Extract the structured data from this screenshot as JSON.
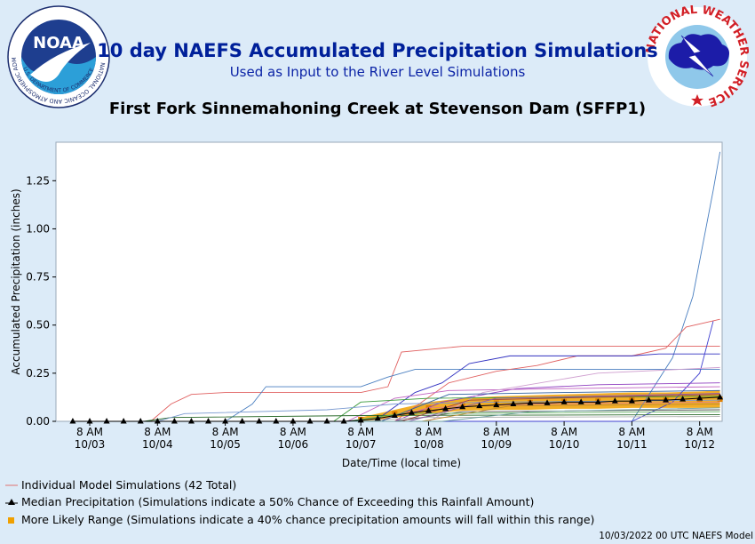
{
  "header": {
    "title": "10 day NAEFS Accumulated Precipitation Simulations",
    "subtitle": "Used as Input to the River Level Simulations",
    "site": "First Fork Sinnemahoning Creek at Stevenson Dam (SFFP1)"
  },
  "logos": {
    "noaa_ring_text": "NATIONAL OCEANIC AND ATMOSPHERIC ADMINISTRATION",
    "noaa_bottom_text": "U.S. DEPARTMENT OF COMMERCE",
    "noaa_center": "NOAA",
    "nws_ring_text": "NATIONAL WEATHER SERVICE"
  },
  "legend": {
    "individual": "Individual Model Simulations (42 Total)",
    "median": "Median Precipitation (Simulations indicate a 50% Chance of Exceeding this Rainfall Amount)",
    "range": "More Likely Range (Simulations indicate a 40% chance precipitation amounts will fall within this range)"
  },
  "footer": "10/03/2022 00 UTC NAEFS Model",
  "colors": {
    "individual": "#e07070",
    "median": "#000000",
    "range": "#f0a000",
    "title": "#00209a"
  },
  "chart_data": {
    "type": "line",
    "xlabel": "Date/Time (local time)",
    "ylabel": "Accumulated Precipitation (inches)",
    "xlim": [
      0,
      9.5
    ],
    "ylim": [
      0,
      1.45
    ],
    "grid": false,
    "y_ticks": [
      {
        "value": 0,
        "label": "0.00"
      },
      {
        "value": 0.25,
        "label": "0.25"
      },
      {
        "value": 0.5,
        "label": "0.50"
      },
      {
        "value": 0.75,
        "label": "0.75"
      },
      {
        "value": 1.0,
        "label": "1.00"
      },
      {
        "value": 1.25,
        "label": "1.25"
      }
    ],
    "x_ticks": [
      {
        "value": 0,
        "label1": "8 AM",
        "label2": "10/03"
      },
      {
        "value": 1,
        "label1": "8 AM",
        "label2": "10/04"
      },
      {
        "value": 2,
        "label1": "8 AM",
        "label2": "10/05"
      },
      {
        "value": 3,
        "label1": "8 AM",
        "label2": "10/06"
      },
      {
        "value": 4,
        "label1": "8 AM",
        "label2": "10/07"
      },
      {
        "value": 5,
        "label1": "8 AM",
        "label2": "10/08"
      },
      {
        "value": 6,
        "label1": "8 AM",
        "label2": "10/09"
      },
      {
        "value": 7,
        "label1": "8 AM",
        "label2": "10/10"
      },
      {
        "value": 8,
        "label1": "8 AM",
        "label2": "10/11"
      },
      {
        "value": 9,
        "label1": "8 AM",
        "label2": "10/12"
      }
    ],
    "range": {
      "x": [
        4.0,
        4.5,
        5.0,
        5.5,
        6.0,
        6.5,
        7.0,
        7.5,
        8.0,
        8.5,
        9.0,
        9.3
      ],
      "low": [
        0.0,
        0.02,
        0.04,
        0.055,
        0.06,
        0.06,
        0.065,
        0.065,
        0.07,
        0.07,
        0.07,
        0.07
      ],
      "high": [
        0.02,
        0.06,
        0.1,
        0.12,
        0.13,
        0.135,
        0.14,
        0.145,
        0.15,
        0.15,
        0.155,
        0.16
      ]
    },
    "median": {
      "x": [
        -0.25,
        0,
        0.25,
        0.5,
        0.75,
        1,
        1.25,
        1.5,
        1.75,
        2,
        2.25,
        2.5,
        2.75,
        3,
        3.25,
        3.5,
        3.75,
        4,
        4.25,
        4.5,
        4.75,
        5,
        5.25,
        5.5,
        5.75,
        6,
        6.25,
        6.5,
        6.75,
        7,
        7.25,
        7.5,
        7.75,
        8,
        8.25,
        8.5,
        8.75,
        9,
        9.3
      ],
      "y": [
        0,
        0,
        0,
        0,
        0,
        0,
        0,
        0,
        0,
        0,
        0,
        0,
        0,
        0,
        0,
        0,
        0,
        0.005,
        0.015,
        0.03,
        0.045,
        0.055,
        0.065,
        0.075,
        0.08,
        0.085,
        0.09,
        0.095,
        0.095,
        0.1,
        0.1,
        0.1,
        0.105,
        0.105,
        0.11,
        0.11,
        0.115,
        0.12,
        0.125
      ]
    },
    "series": [
      {
        "color": "#e06060",
        "points": [
          [
            -0.25,
            0
          ],
          [
            0.9,
            0
          ],
          [
            1.2,
            0.09
          ],
          [
            1.5,
            0.14
          ],
          [
            2,
            0.15
          ],
          [
            4,
            0.15
          ],
          [
            4.4,
            0.18
          ],
          [
            4.6,
            0.36
          ],
          [
            5.5,
            0.39
          ],
          [
            9.3,
            0.39
          ]
        ]
      },
      {
        "color": "#4a7fc0",
        "points": [
          [
            -0.25,
            0
          ],
          [
            2,
            0
          ],
          [
            2.4,
            0.09
          ],
          [
            2.6,
            0.18
          ],
          [
            4,
            0.18
          ],
          [
            4.4,
            0.23
          ],
          [
            4.8,
            0.27
          ],
          [
            9.3,
            0.27
          ]
        ]
      },
      {
        "color": "#4a7fc0",
        "points": [
          [
            -0.25,
            0
          ],
          [
            8,
            0
          ],
          [
            8.6,
            0.33
          ],
          [
            8.9,
            0.65
          ],
          [
            9.2,
            1.2
          ],
          [
            9.3,
            1.4
          ]
        ]
      },
      {
        "color": "#e06060",
        "points": [
          [
            -0.25,
            0
          ],
          [
            4.5,
            0
          ],
          [
            5.3,
            0.2
          ],
          [
            6,
            0.26
          ],
          [
            6.6,
            0.29
          ],
          [
            7.2,
            0.34
          ],
          [
            8,
            0.34
          ],
          [
            8.5,
            0.38
          ],
          [
            8.8,
            0.49
          ],
          [
            9.3,
            0.53
          ]
        ]
      },
      {
        "color": "#3030c0",
        "points": [
          [
            -0.25,
            0
          ],
          [
            4.2,
            0
          ],
          [
            4.8,
            0.15
          ],
          [
            5.2,
            0.2
          ],
          [
            5.6,
            0.3
          ],
          [
            6.2,
            0.34
          ],
          [
            8,
            0.34
          ],
          [
            8.4,
            0.35
          ],
          [
            9.3,
            0.35
          ]
        ]
      },
      {
        "color": "#4040d0",
        "points": [
          [
            -0.25,
            0
          ],
          [
            8,
            0
          ],
          [
            8.6,
            0.1
          ],
          [
            9,
            0.25
          ],
          [
            9.2,
            0.52
          ]
        ]
      },
      {
        "color": "#9040c0",
        "points": [
          [
            -0.25,
            0
          ],
          [
            4.5,
            0
          ],
          [
            5.2,
            0.1
          ],
          [
            6.3,
            0.17
          ],
          [
            7.5,
            0.19
          ],
          [
            9.3,
            0.2
          ]
        ]
      },
      {
        "color": "#c060c0",
        "points": [
          [
            -0.25,
            0
          ],
          [
            3.8,
            0
          ],
          [
            4.5,
            0.12
          ],
          [
            5.3,
            0.16
          ],
          [
            7,
            0.17
          ],
          [
            9.3,
            0.18
          ]
        ]
      },
      {
        "color": "#d0a0d0",
        "points": [
          [
            -0.25,
            0
          ],
          [
            5,
            0
          ],
          [
            5.8,
            0.15
          ],
          [
            7.5,
            0.25
          ],
          [
            9.3,
            0.28
          ]
        ]
      },
      {
        "color": "#3a9a3a",
        "points": [
          [
            -0.25,
            0
          ],
          [
            3.6,
            0
          ],
          [
            4,
            0.1
          ],
          [
            5,
            0.12
          ],
          [
            9.3,
            0.13
          ]
        ]
      },
      {
        "color": "#2a6a2a",
        "points": [
          [
            -0.25,
            0
          ],
          [
            0.8,
            0
          ],
          [
            1.2,
            0.02
          ],
          [
            4,
            0.03
          ],
          [
            9.3,
            0.035
          ]
        ]
      },
      {
        "color": "#7a9ad0",
        "points": [
          [
            -0.25,
            0
          ],
          [
            1.0,
            0
          ],
          [
            1.4,
            0.04
          ],
          [
            3.5,
            0.06
          ],
          [
            4.5,
            0.09
          ],
          [
            6,
            0.1
          ],
          [
            9.3,
            0.11
          ]
        ]
      },
      {
        "color": "#e08080",
        "points": [
          [
            -0.25,
            0
          ],
          [
            4.2,
            0
          ],
          [
            5,
            0.07
          ],
          [
            6.5,
            0.09
          ],
          [
            9.3,
            0.1
          ]
        ]
      },
      {
        "color": "#555555",
        "points": [
          [
            -0.25,
            0
          ],
          [
            4.5,
            0
          ],
          [
            5.5,
            0.05
          ],
          [
            9.3,
            0.06
          ]
        ]
      },
      {
        "color": "#60b060",
        "points": [
          [
            -0.25,
            0
          ],
          [
            3.8,
            0
          ],
          [
            4.6,
            0.04
          ],
          [
            9.3,
            0.05
          ]
        ]
      },
      {
        "color": "#b0b0b0",
        "points": [
          [
            -0.25,
            0
          ],
          [
            4,
            0
          ],
          [
            4.8,
            0.02
          ],
          [
            9.3,
            0.025
          ]
        ]
      },
      {
        "color": "#3060a0",
        "points": [
          [
            -0.25,
            0
          ],
          [
            4.3,
            0
          ],
          [
            5.3,
            0.14
          ],
          [
            7,
            0.15
          ],
          [
            9.3,
            0.16
          ]
        ]
      },
      {
        "color": "#a04040",
        "points": [
          [
            -0.25,
            0
          ],
          [
            4.6,
            0
          ],
          [
            5.6,
            0.11
          ],
          [
            9.3,
            0.14
          ]
        ]
      },
      {
        "color": "#8a5ab0",
        "points": [
          [
            -0.25,
            0
          ],
          [
            4.7,
            0
          ],
          [
            6,
            0.12
          ],
          [
            9.3,
            0.145
          ]
        ]
      },
      {
        "color": "#c08a30",
        "points": [
          [
            -0.25,
            0
          ],
          [
            4.9,
            0
          ],
          [
            6.2,
            0.08
          ],
          [
            9.3,
            0.09
          ]
        ]
      },
      {
        "color": "#70a0a0",
        "points": [
          [
            -0.25,
            0
          ],
          [
            5.2,
            0
          ],
          [
            6.5,
            0.05
          ],
          [
            9.3,
            0.07
          ]
        ]
      }
    ]
  }
}
